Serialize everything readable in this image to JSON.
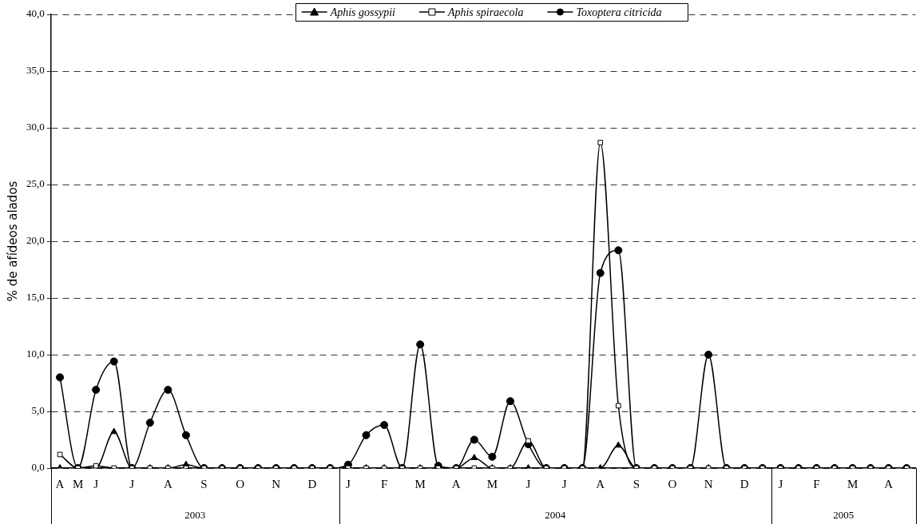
{
  "chart_data": {
    "type": "line",
    "ylabel": "% de afídeos alados",
    "categories": [
      "A",
      "M",
      "J",
      null,
      "J",
      null,
      "A",
      null,
      "S",
      null,
      "O",
      null,
      "N",
      null,
      "D",
      null,
      "J",
      null,
      "F",
      null,
      "M",
      null,
      "A",
      null,
      "M",
      null,
      "J",
      null,
      "J",
      null,
      "A",
      null,
      "S",
      null,
      "O",
      null,
      "N",
      null,
      "D",
      null,
      "J",
      null,
      "F",
      null,
      "M",
      null,
      "A",
      null
    ],
    "series": [
      {
        "name": "Aphis gossypii",
        "color": "#000000",
        "marker": "triangle",
        "values": [
          0,
          0,
          0,
          3.2,
          0,
          0,
          0,
          0.3,
          0,
          0,
          0,
          0,
          0,
          0,
          0,
          0,
          0,
          0,
          0,
          0,
          0,
          0,
          0,
          0.9,
          0,
          0,
          0,
          0,
          0,
          0,
          0,
          2.0,
          0,
          0,
          0,
          0,
          0,
          0,
          0,
          0,
          0,
          0,
          0,
          0,
          0,
          0,
          0,
          0
        ]
      },
      {
        "name": "Aphis spiraecola",
        "color": "#000000",
        "marker": "square",
        "values": [
          1.2,
          0,
          0.2,
          0,
          0,
          0,
          0,
          0,
          0,
          0,
          0,
          0,
          0,
          0,
          0,
          0,
          0,
          0,
          0,
          0,
          0,
          0,
          0,
          0,
          0,
          0,
          2.4,
          0,
          0,
          0,
          28.7,
          5.5,
          0,
          0,
          0,
          0,
          0,
          0,
          0,
          0,
          0,
          0,
          0,
          0,
          0,
          0,
          0,
          0
        ]
      },
      {
        "name": "Toxoptera citricida",
        "color": "#000000",
        "marker": "circle",
        "values": [
          8.0,
          0,
          6.9,
          9.4,
          0,
          4.0,
          6.9,
          2.9,
          0,
          0,
          0,
          0,
          0,
          0,
          0,
          0,
          0.3,
          2.9,
          3.8,
          0,
          10.9,
          0.2,
          0,
          2.5,
          1.0,
          5.9,
          2.1,
          0,
          0,
          0,
          17.2,
          19.2,
          0,
          0,
          0,
          0,
          10.0,
          0,
          0,
          0,
          0,
          0,
          0,
          0,
          0,
          0,
          0,
          0
        ]
      }
    ],
    "ylim": [
      0,
      40
    ],
    "yticks": [
      {
        "value": 0,
        "label": "0,0"
      },
      {
        "value": 5,
        "label": "5,0"
      },
      {
        "value": 10,
        "label": "10,0"
      },
      {
        "value": 15,
        "label": "15,0"
      },
      {
        "value": 20,
        "label": "20,0"
      },
      {
        "value": 25,
        "label": "25,0"
      },
      {
        "value": 30,
        "label": "30,0"
      },
      {
        "value": 35,
        "label": "35,0"
      },
      {
        "value": 40,
        "label": "40,0"
      }
    ],
    "grid": "y",
    "legend": "top",
    "annotations": [
      "2003",
      "2004",
      "2005"
    ]
  }
}
